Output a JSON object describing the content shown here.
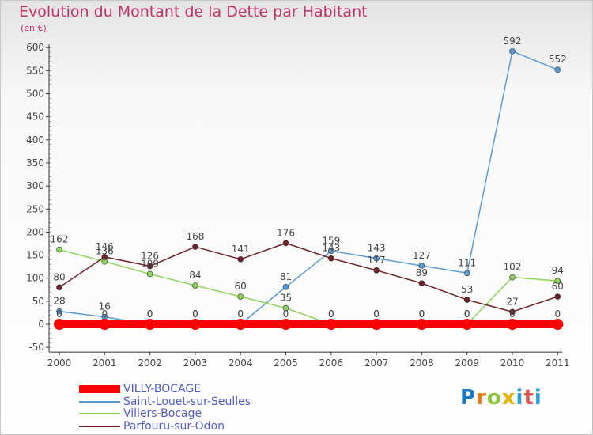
{
  "title": "Evolution du Montant de la Dette par Habitant",
  "subtitle": "(en €)",
  "logo_text": "Proxiti",
  "chart_data": {
    "type": "line",
    "x": [
      "2000",
      "2001",
      "2002",
      "2003",
      "2004",
      "2005",
      "2006",
      "2007",
      "2008",
      "2009",
      "2010",
      "2011"
    ],
    "ylim": [
      -50,
      600
    ],
    "yticks": [
      -50,
      0,
      50,
      100,
      150,
      200,
      250,
      300,
      350,
      400,
      450,
      500,
      550,
      600
    ],
    "grid": false,
    "legend_position": "bottom-left",
    "series": [
      {
        "name": "VILLY-BOCAGE",
        "color": "#ff0000",
        "values": [
          0,
          0,
          0,
          0,
          0,
          0,
          0,
          0,
          0,
          0,
          0,
          0
        ]
      },
      {
        "name": "Saint-Louet-sur-Seulles",
        "color": "#5b9bd5",
        "values": [
          28,
          16,
          0,
          0,
          0,
          81,
          159,
          143,
          127,
          111,
          592,
          552
        ]
      },
      {
        "name": "Villers-Bocage",
        "color": "#8ed45b",
        "values": [
          162,
          136,
          109,
          84,
          60,
          35,
          0,
          0,
          0,
          0,
          102,
          94
        ]
      },
      {
        "name": "Parfouru-sur-Odon",
        "color": "#6e2328",
        "values": [
          80,
          146,
          126,
          168,
          141,
          176,
          143,
          117,
          89,
          53,
          27,
          60
        ]
      }
    ]
  }
}
